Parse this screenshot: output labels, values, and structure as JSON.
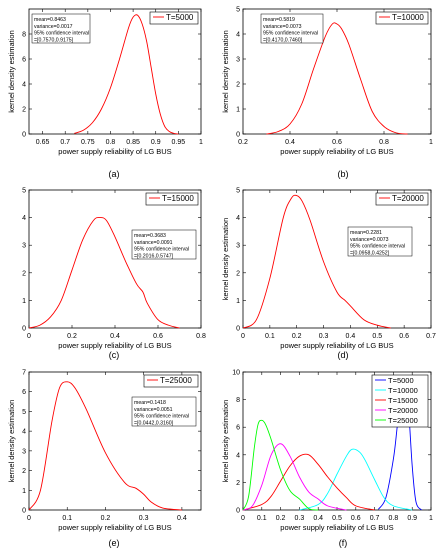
{
  "figure": {
    "captions": [
      "(a)",
      "(b)",
      "(c)",
      "(d)",
      "(e)",
      "(f)"
    ]
  },
  "chart_data": [
    {
      "panel": "a",
      "type": "line",
      "xlabel": "power supply reliability of LG BUS",
      "ylabel": "kernel density estimation",
      "xlim": [
        0.62,
        1.0
      ],
      "ylim": [
        0,
        10
      ],
      "xticks": [
        "0.65",
        "0.7",
        "0.75",
        "0.8",
        "0.85",
        "0.9",
        "0.95",
        "1"
      ],
      "yticks": [
        "0",
        "2",
        "4",
        "6",
        "8"
      ],
      "legend": "top-right",
      "stats_box": [
        "mean=0.8463",
        "variance=0.0017",
        "95% confidence interval",
        "=[0.7570,0.9175]"
      ],
      "series": [
        {
          "name": "T=5000",
          "color": "#ff0000",
          "x": [
            0.72,
            0.74,
            0.76,
            0.78,
            0.8,
            0.82,
            0.84,
            0.85,
            0.86,
            0.87,
            0.88,
            0.89,
            0.9,
            0.91,
            0.92,
            0.93,
            0.94,
            0.95
          ],
          "y": [
            0.05,
            0.3,
            0.9,
            2.0,
            3.7,
            6.0,
            8.5,
            9.35,
            9.5,
            8.8,
            7.4,
            5.3,
            3.2,
            1.6,
            0.6,
            0.2,
            0.05,
            0.0
          ]
        }
      ]
    },
    {
      "panel": "b",
      "type": "line",
      "xlabel": "power supply reliability of LG BUS",
      "ylabel": "kernel density estimation",
      "xlim": [
        0.2,
        1.0
      ],
      "ylim": [
        0,
        5
      ],
      "xticks": [
        "0.2",
        "0.4",
        "0.6",
        "0.8",
        "1"
      ],
      "yticks": [
        "0",
        "1",
        "2",
        "3",
        "4",
        "5"
      ],
      "legend": "top-right",
      "stats_box": [
        "mean=0.5819",
        "variance=0.0073",
        "95% confidence interval",
        "=[0.4170,0.7460]"
      ],
      "series": [
        {
          "name": "T=10000",
          "color": "#ff0000",
          "x": [
            0.3,
            0.35,
            0.4,
            0.45,
            0.5,
            0.55,
            0.58,
            0.6,
            0.62,
            0.65,
            0.7,
            0.75,
            0.8,
            0.85,
            0.9
          ],
          "y": [
            0.0,
            0.1,
            0.4,
            1.2,
            2.6,
            3.9,
            4.4,
            4.4,
            4.2,
            3.6,
            2.2,
            0.9,
            0.3,
            0.05,
            0.0
          ]
        }
      ]
    },
    {
      "panel": "c",
      "type": "line",
      "xlabel": "power supply reliability of LG BUS",
      "ylabel": "",
      "xlim": [
        0.0,
        0.8
      ],
      "ylim": [
        0,
        5
      ],
      "xticks": [
        "0",
        "0.2",
        "0.4",
        "0.6",
        "0.8"
      ],
      "yticks": [
        "0",
        "1",
        "2",
        "3",
        "4",
        "5"
      ],
      "legend": "top-right",
      "stats_box": [
        "mean=0.3683",
        "variance=0.0091",
        "95% confidence interval",
        "=[0.2016,0.5747]"
      ],
      "series": [
        {
          "name": "T=15000",
          "color": "#ff0000",
          "x": [
            0.0,
            0.05,
            0.1,
            0.15,
            0.2,
            0.25,
            0.3,
            0.33,
            0.36,
            0.4,
            0.45,
            0.5,
            0.53,
            0.55,
            0.6,
            0.65,
            0.7
          ],
          "y": [
            0.0,
            0.1,
            0.4,
            1.0,
            2.1,
            3.2,
            3.9,
            4.0,
            3.9,
            3.3,
            2.4,
            1.6,
            1.3,
            0.9,
            0.3,
            0.1,
            0.0
          ]
        }
      ]
    },
    {
      "panel": "d",
      "type": "line",
      "xlabel": "power supply reliability of LG BUS",
      "ylabel": "kernel density estimation",
      "xlim": [
        0.0,
        0.7
      ],
      "ylim": [
        0,
        5
      ],
      "xticks": [
        "0",
        "0.1",
        "0.2",
        "0.3",
        "0.4",
        "0.5",
        "0.6",
        "0.7"
      ],
      "yticks": [
        "0",
        "1",
        "2",
        "3",
        "4",
        "5"
      ],
      "legend": "top-right",
      "stats_box": [
        "mean=0.2281",
        "variance=0.0073",
        "95% confidence interval",
        "=[0.0958,0.4252]"
      ],
      "series": [
        {
          "name": "T=20000",
          "color": "#ff0000",
          "x": [
            0.0,
            0.05,
            0.1,
            0.15,
            0.18,
            0.2,
            0.22,
            0.25,
            0.3,
            0.35,
            0.38,
            0.4,
            0.45,
            0.5,
            0.55
          ],
          "y": [
            0.0,
            0.3,
            1.8,
            4.0,
            4.7,
            4.8,
            4.6,
            3.9,
            2.4,
            1.3,
            1.0,
            0.8,
            0.3,
            0.1,
            0.0
          ]
        }
      ]
    },
    {
      "panel": "e",
      "type": "line",
      "xlabel": "power supply reliability of LG BUS",
      "ylabel": "kernel density estimation",
      "xlim": [
        0.0,
        0.45
      ],
      "ylim": [
        0,
        7
      ],
      "xticks": [
        "0",
        "0.1",
        "0.2",
        "0.3",
        "0.4"
      ],
      "yticks": [
        "0",
        "1",
        "2",
        "3",
        "4",
        "5",
        "6",
        "7"
      ],
      "legend": "top-right",
      "stats_box": [
        "mean=0.1418",
        "variance=0.0051",
        "95% confidence interval",
        "=[0.0442,0.3160]"
      ],
      "series": [
        {
          "name": "T=25000",
          "color": "#ff0000",
          "x": [
            0.0,
            0.03,
            0.06,
            0.08,
            0.1,
            0.12,
            0.15,
            0.2,
            0.25,
            0.28,
            0.3,
            0.32,
            0.35,
            0.4
          ],
          "y": [
            0.0,
            1.0,
            4.5,
            6.2,
            6.5,
            6.2,
            5.1,
            2.9,
            1.4,
            1.1,
            0.8,
            0.4,
            0.1,
            0.0
          ]
        }
      ]
    },
    {
      "panel": "f",
      "type": "line",
      "xlabel": "power supply reliability of LG BUS",
      "ylabel": "kernel density estimation",
      "xlim": [
        0.0,
        1.0
      ],
      "ylim": [
        0,
        10
      ],
      "xticks": [
        "0",
        "0.1",
        "0.2",
        "0.3",
        "0.4",
        "0.5",
        "0.6",
        "0.7",
        "0.8",
        "0.9",
        "1"
      ],
      "yticks": [
        "0",
        "2",
        "4",
        "6",
        "8",
        "10"
      ],
      "legend": "top-right",
      "stats_box": [],
      "series": [
        {
          "name": "T=5000",
          "color": "#0000ff",
          "x": [
            0.72,
            0.76,
            0.8,
            0.82,
            0.84,
            0.86,
            0.88,
            0.9,
            0.92,
            0.95
          ],
          "y": [
            0.05,
            0.9,
            3.7,
            6.0,
            8.5,
            9.5,
            7.4,
            3.2,
            0.6,
            0.0
          ]
        },
        {
          "name": "T=10000",
          "color": "#00ffff",
          "x": [
            0.3,
            0.4,
            0.45,
            0.5,
            0.55,
            0.58,
            0.62,
            0.65,
            0.7,
            0.75,
            0.8,
            0.9
          ],
          "y": [
            0.0,
            0.4,
            1.2,
            2.6,
            3.9,
            4.4,
            4.2,
            3.6,
            2.2,
            0.9,
            0.3,
            0.0
          ]
        },
        {
          "name": "T=15000",
          "color": "#ff0000",
          "x": [
            0.0,
            0.1,
            0.15,
            0.2,
            0.25,
            0.3,
            0.35,
            0.4,
            0.45,
            0.5,
            0.55,
            0.6,
            0.7
          ],
          "y": [
            0.0,
            0.4,
            1.0,
            2.1,
            3.2,
            3.9,
            4.0,
            3.3,
            2.4,
            1.6,
            0.9,
            0.3,
            0.0
          ]
        },
        {
          "name": "T=20000",
          "color": "#ff00ff",
          "x": [
            0.0,
            0.05,
            0.1,
            0.15,
            0.2,
            0.25,
            0.3,
            0.35,
            0.4,
            0.45,
            0.55
          ],
          "y": [
            0.0,
            0.3,
            1.8,
            4.0,
            4.8,
            3.9,
            2.4,
            1.3,
            0.8,
            0.3,
            0.0
          ]
        },
        {
          "name": "T=25000",
          "color": "#00ff00",
          "x": [
            0.0,
            0.03,
            0.06,
            0.08,
            0.1,
            0.12,
            0.15,
            0.2,
            0.25,
            0.3,
            0.35,
            0.4
          ],
          "y": [
            0.0,
            1.0,
            4.5,
            6.2,
            6.5,
            6.2,
            5.1,
            2.9,
            1.4,
            0.8,
            0.1,
            0.0
          ]
        }
      ]
    }
  ]
}
